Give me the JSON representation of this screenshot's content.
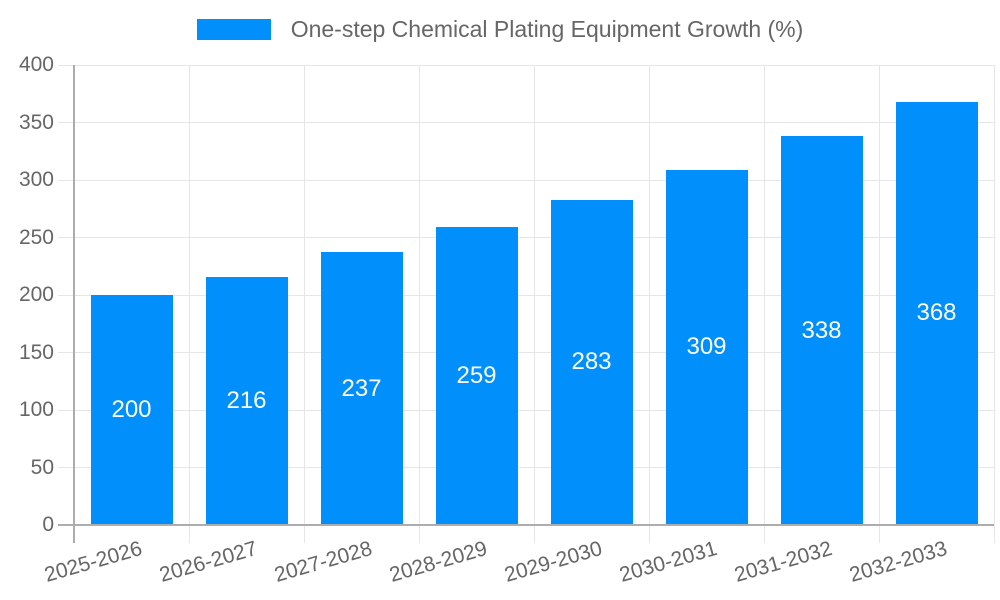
{
  "chart_data": {
    "type": "bar",
    "title": "One-step Chemical Plating Equipment Growth (%)",
    "categories": [
      "2025-2026",
      "2026-2027",
      "2027-2028",
      "2028-2029",
      "2029-2030",
      "2030-2031",
      "2031-2032",
      "2032-2033"
    ],
    "values": [
      200,
      216,
      237,
      259,
      283,
      309,
      338,
      368
    ],
    "xlabel": "",
    "ylabel": "",
    "ylim": [
      0,
      400
    ],
    "ytick_step": 50,
    "ytick_labels": [
      "0",
      "50",
      "100",
      "150",
      "200",
      "250",
      "300",
      "350",
      "400"
    ],
    "grid": true,
    "legend_position": "top",
    "bar_labels_shown": true,
    "colors": {
      "bar": "#008FFB",
      "bar_label": "#ffffff",
      "grid": "#e6e6e6",
      "axis": "#adadad",
      "tick_text": "#666666",
      "legend_text": "#666666",
      "background": "#ffffff"
    }
  }
}
